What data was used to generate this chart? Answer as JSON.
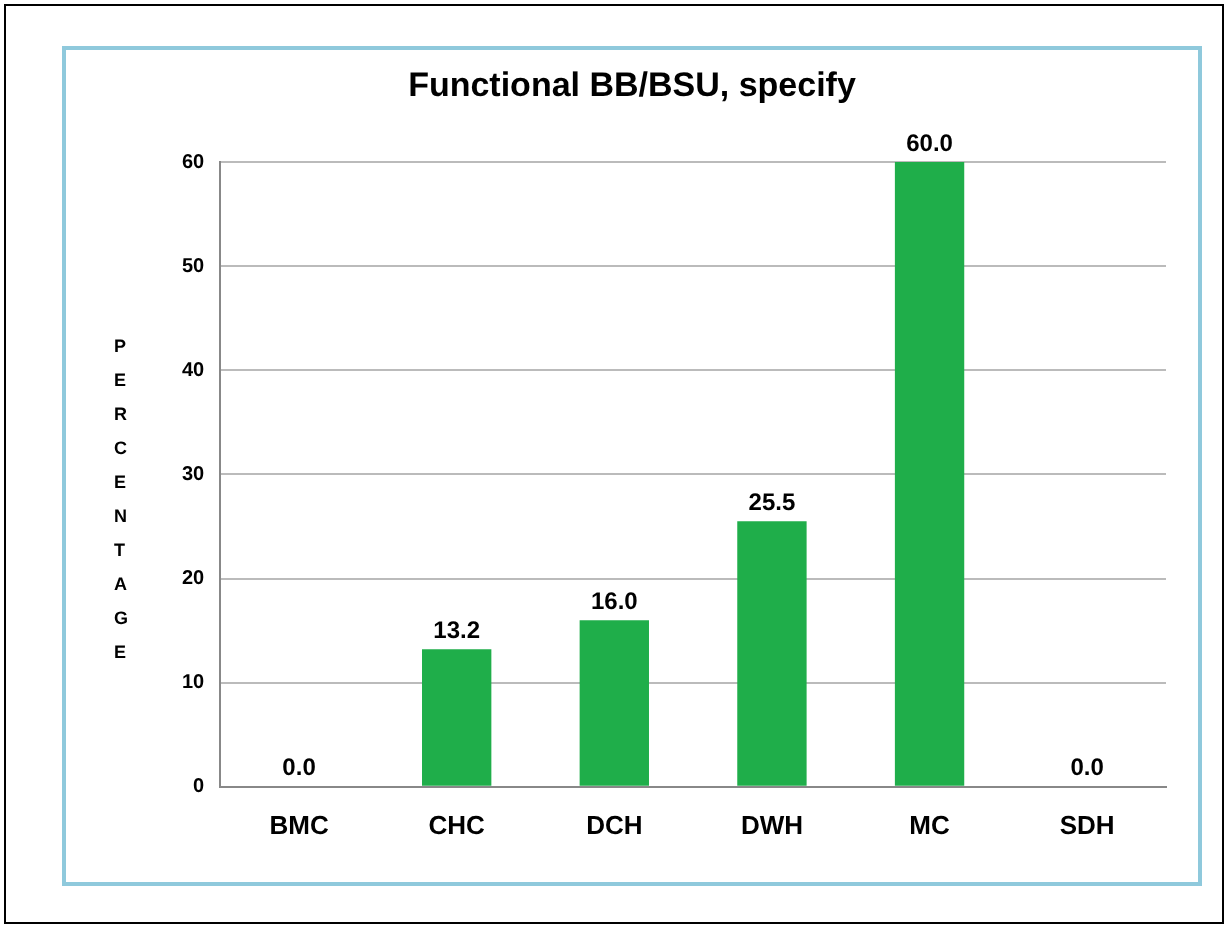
{
  "chart_data": {
    "type": "bar",
    "title": "Functional BB/BSU, specify",
    "ylabel": "PERCENTAGE",
    "categories": [
      "BMC",
      "CHC",
      "DCH",
      "DWH",
      "MC",
      "SDH"
    ],
    "values": [
      0.0,
      13.2,
      16.0,
      25.5,
      60.0,
      0.0
    ],
    "value_labels": [
      "0.0",
      "13.2",
      "16.0",
      "25.5",
      "60.0",
      "0.0"
    ],
    "color": "#1fae4a",
    "ylim": [
      0,
      60
    ],
    "yticks": [
      0,
      10,
      20,
      30,
      40,
      50,
      60
    ],
    "grid": "y"
  }
}
